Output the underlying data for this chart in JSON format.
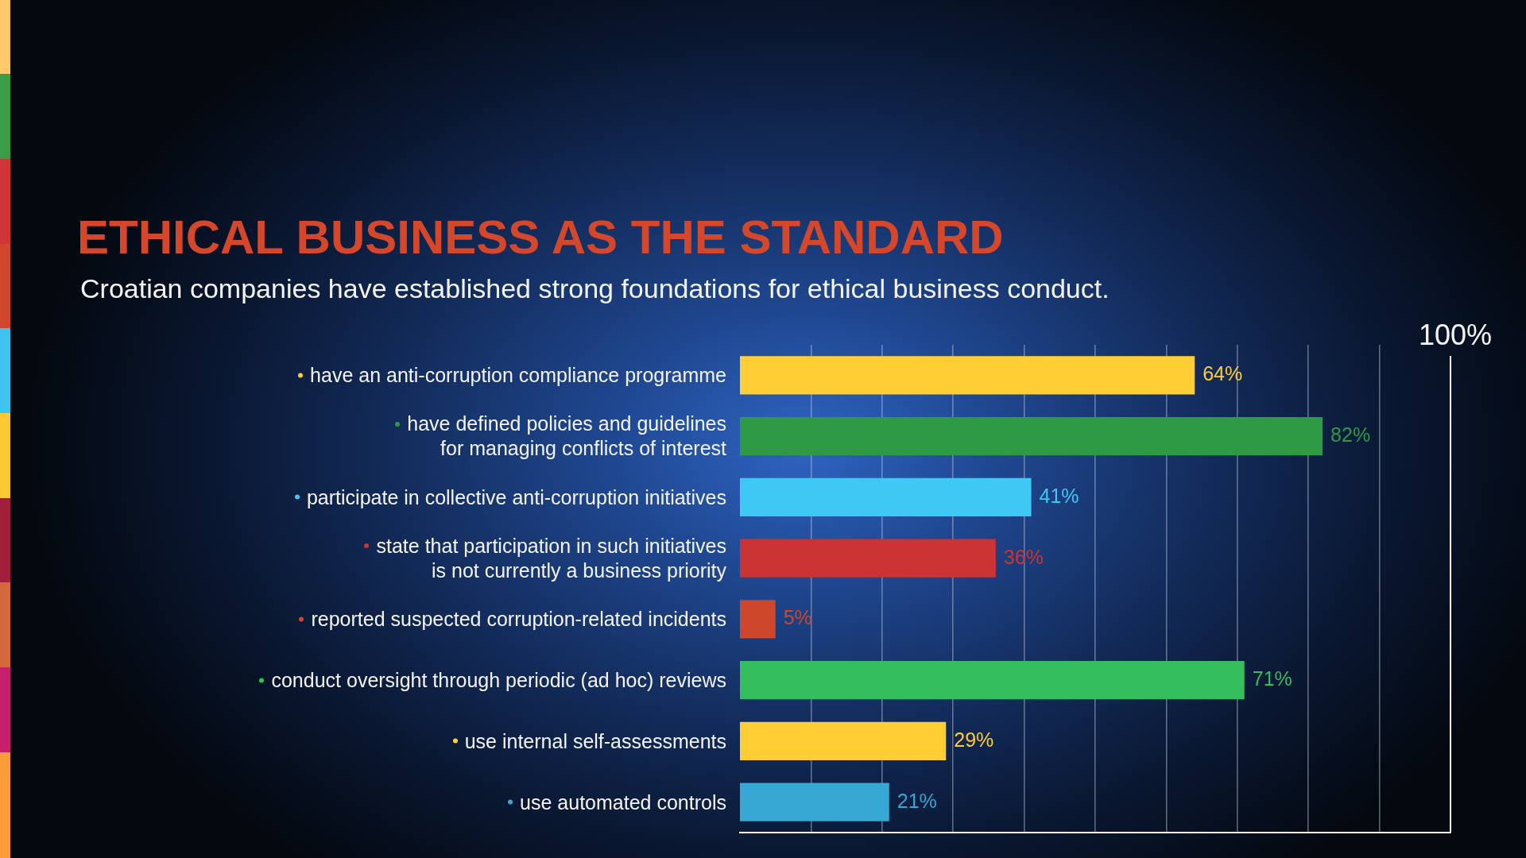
{
  "chart_data": {
    "type": "bar",
    "orientation": "horizontal",
    "title": "ETHICAL BUSINESS AS THE STANDARD",
    "subtitle": "Croatian companies have established strong foundations for ethical business conduct.",
    "categories": [
      "have an anti-corruption compliance programme",
      "have defined policies and guidelines\nfor managing conflicts of interest",
      "participate in collective anti-corruption initiatives",
      "state that participation in such initiatives\nis not currently a business priority",
      "reported suspected corruption-related incidents",
      "conduct oversight through periodic (ad hoc) reviews",
      "use internal self-assessments",
      "use automated controls"
    ],
    "values": [
      64,
      82,
      41,
      36,
      5,
      71,
      29,
      21
    ],
    "value_labels": [
      "64%",
      "82%",
      "41%",
      "36%",
      "5%",
      "71%",
      "29%",
      "21%"
    ],
    "colors": [
      "#ffce34",
      "#2f9a45",
      "#40c8f4",
      "#cc3335",
      "#ce472d",
      "#34be5e",
      "#ffce34",
      "#36a8d3"
    ],
    "xlim": [
      0,
      100
    ],
    "xticks": [
      {
        "value": 10,
        "label": null
      },
      {
        "value": 20,
        "label": null
      },
      {
        "value": 30,
        "label": null
      },
      {
        "value": 40,
        "label": null
      },
      {
        "value": 50,
        "label": null
      },
      {
        "value": 60,
        "label": null
      },
      {
        "value": 70,
        "label": null
      },
      {
        "value": 80,
        "label": null
      },
      {
        "value": 90,
        "label": null
      }
    ],
    "grid": "x",
    "tick_labels": "y",
    "ref_lines": [
      {
        "axis": "x",
        "value": 100,
        "label": "100%",
        "color": "#ffffff"
      }
    ]
  }
}
